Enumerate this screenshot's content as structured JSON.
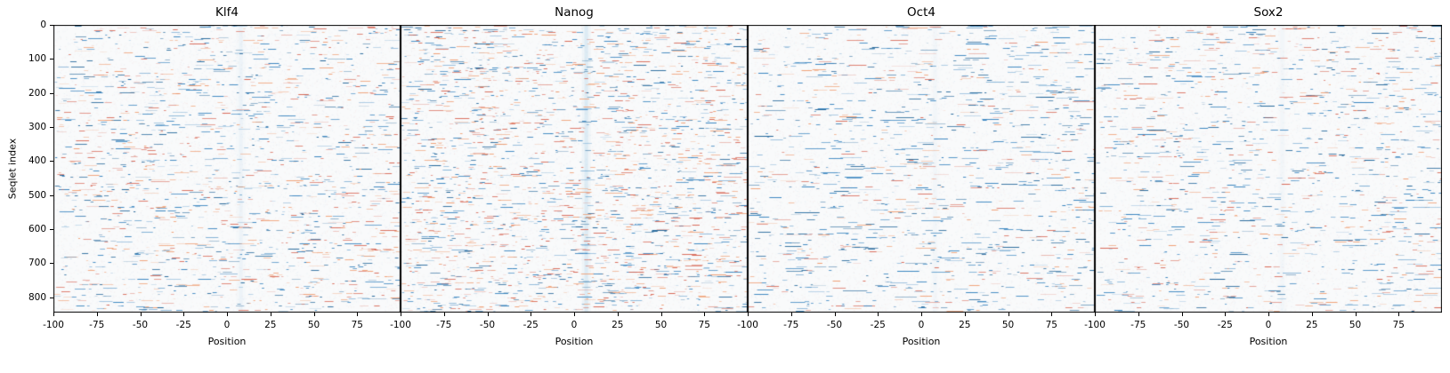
{
  "chart_data": {
    "type": "heatmap",
    "title": "",
    "xlabel": "Position",
    "ylabel": "Seqlet index",
    "x_range": [
      -100,
      100
    ],
    "x_ticks": [
      -100,
      -75,
      -50,
      -25,
      0,
      25,
      50,
      75
    ],
    "y_range": [
      0,
      845
    ],
    "y_ticks": [
      0,
      100,
      200,
      300,
      400,
      500,
      600,
      700,
      800
    ],
    "grid": false,
    "legend": "none",
    "colormap": "diverging blue-white-red (RdBu-like); values mostly near zero (near-white) with sparse short horizontal streaks of negative (blue) and positive (red/orange) signal; faint light-blue vertical band near position ~8",
    "description": "Four adjacent heatmap panels sharing a y-axis (Seqlet index 0-~845) and per-panel x-axis (Position -100 to 100). Each row is a seqlet; sparse blue/red dashes mark contribution scores.",
    "panels": [
      {
        "title": "Klf4",
        "seed": 11,
        "streaks": 1450,
        "blue_frac": 0.55,
        "max_len": 20,
        "band_pos": 8,
        "band_alpha": 0.1
      },
      {
        "title": "Nanog",
        "seed": 22,
        "streaks": 2100,
        "blue_frac": 0.5,
        "max_len": 18,
        "band_pos": 7,
        "band_alpha": 0.25
      },
      {
        "title": "Oct4",
        "seed": 33,
        "streaks": 1150,
        "blue_frac": 0.72,
        "max_len": 27,
        "band_pos": 8,
        "band_alpha": 0.06
      },
      {
        "title": "Sox2",
        "seed": 44,
        "streaks": 1200,
        "blue_frac": 0.62,
        "max_len": 22,
        "band_pos": 8,
        "band_alpha": 0.06
      }
    ],
    "colors": {
      "negative": "#2e7ebc",
      "negative_dark": "#175e94",
      "positive": "#d6604d",
      "positive_light": "#ef9b6e",
      "band": "#a8cfe8",
      "background": "#f9fafb",
      "axis": "#000000"
    }
  }
}
